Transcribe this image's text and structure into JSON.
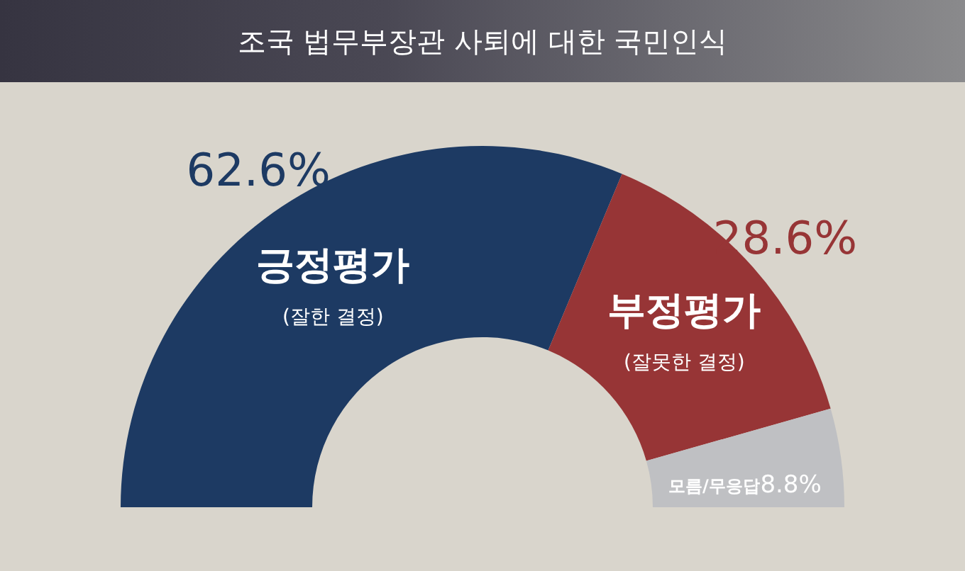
{
  "chart_data": {
    "type": "donut",
    "title": "조국 법무부장관 사퇴에 대한 국민인식",
    "categories": [
      "긍정평가",
      "부정평가",
      "모름/무응답"
    ],
    "values": [
      62.6,
      28.6,
      8.8
    ],
    "colors": [
      "#1d3a63",
      "#973536",
      "#bfc0c3"
    ],
    "value_labels": [
      "62.6%",
      "28.6%",
      "8.8%"
    ],
    "annotations": [
      "(잘한 결정)",
      "(잘못한 결정)"
    ]
  }
}
